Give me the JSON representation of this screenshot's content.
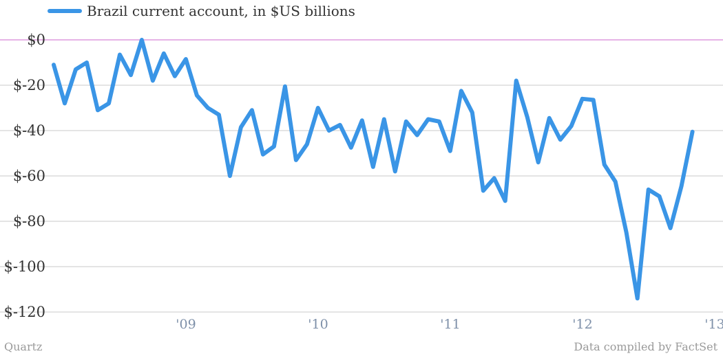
{
  "chart_data": {
    "type": "line",
    "legend": {
      "label": "Brazil current account, in $US billions",
      "position": "top-left"
    },
    "series": [
      {
        "name": "Brazil current account, in $US billions",
        "color": "#3a95e6",
        "values": [
          -11,
          -28,
          -13,
          -10,
          -31,
          -28,
          -6.5,
          -15.5,
          0,
          -18,
          -6,
          -16,
          -8.5,
          -24.5,
          -30,
          -33,
          -60,
          -38.5,
          -31,
          -50.5,
          -47,
          -20.5,
          -53,
          -46,
          -30,
          -40,
          -37.5,
          -47.5,
          -35.5,
          -56,
          -35,
          -58,
          -36,
          -42,
          -35,
          -36,
          -49,
          -22.5,
          -32,
          -66.5,
          -61,
          -71,
          -18,
          -34,
          -54,
          -34.5,
          -44,
          -38,
          -26,
          -26.5,
          -55,
          -62.5,
          -85,
          -114,
          -66,
          -69,
          -83,
          -64.5,
          -40.5
        ]
      }
    ],
    "x_start": 2008.0,
    "x_step": 0.0833,
    "xlim": [
      2008.0,
      2013.0
    ],
    "x_ticks": [
      {
        "value": 2009.0,
        "label": "'09"
      },
      {
        "value": 2010.0,
        "label": "'10"
      },
      {
        "value": 2011.0,
        "label": "'11"
      },
      {
        "value": 2012.0,
        "label": "'12"
      },
      {
        "value": 2013.0,
        "label": "'13"
      }
    ],
    "ylim": [
      -120,
      0
    ],
    "y_ticks": [
      {
        "value": 0,
        "label": "$0"
      },
      {
        "value": -20,
        "label": "$-20"
      },
      {
        "value": -40,
        "label": "$-40"
      },
      {
        "value": -60,
        "label": "$-60"
      },
      {
        "value": -80,
        "label": "$-80"
      },
      {
        "value": -100,
        "label": "$-100"
      },
      {
        "value": -120,
        "label": "$-120"
      }
    ],
    "grid": true,
    "zero_line_color": "#cc66cc",
    "grid_color": "#c8c8c8"
  },
  "footer": {
    "source_left": "Quartz",
    "source_right": "Data compiled by FactSet"
  }
}
